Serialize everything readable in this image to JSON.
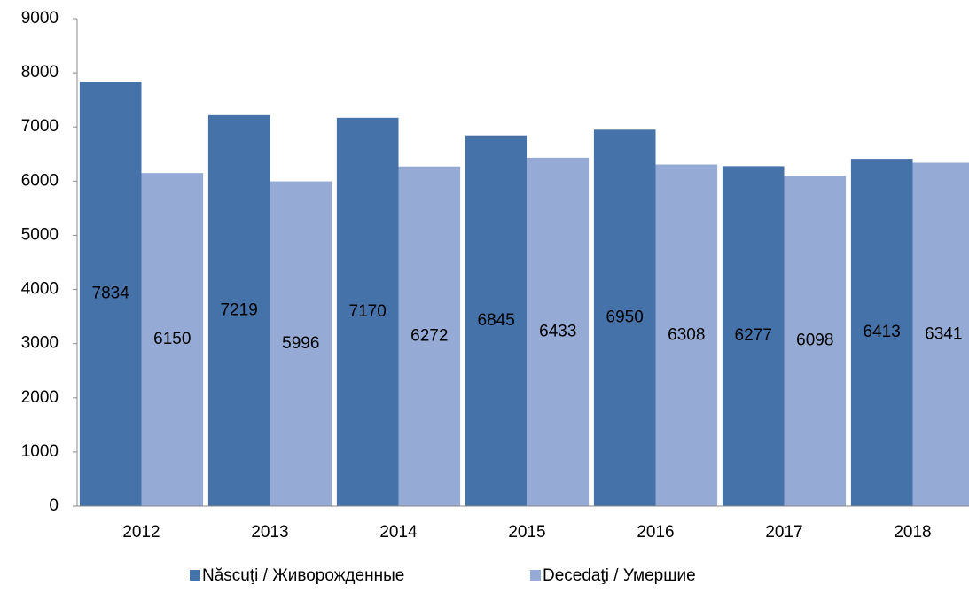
{
  "chart_data": {
    "type": "bar",
    "categories": [
      "2012",
      "2013",
      "2014",
      "2015",
      "2016",
      "2017",
      "2018"
    ],
    "series": [
      {
        "name": "Născuţi / Живорожденные",
        "color": "#4672aa",
        "values": [
          7834,
          7219,
          7170,
          6845,
          6950,
          6277,
          6413
        ]
      },
      {
        "name": "Decedaţi / Умершие",
        "color": "#95aad4",
        "values": [
          6150,
          5996,
          6272,
          6433,
          6308,
          6098,
          6341
        ]
      }
    ],
    "ylim": [
      0,
      9000
    ],
    "yticks": [
      0,
      1000,
      2000,
      3000,
      4000,
      5000,
      6000,
      7000,
      8000,
      9000
    ],
    "grid": false,
    "legend": "bottom"
  }
}
